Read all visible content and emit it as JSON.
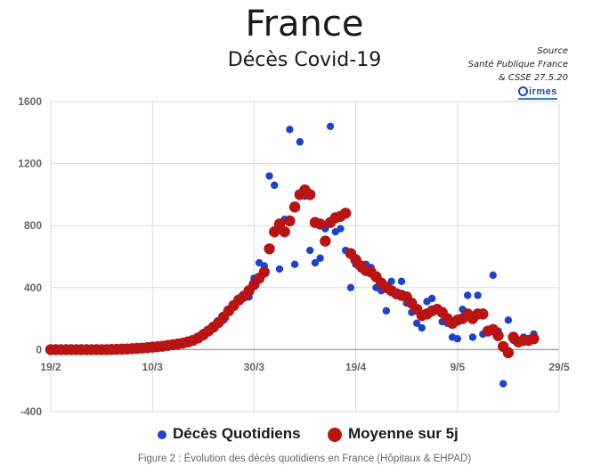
{
  "header": {
    "title": "France",
    "subtitle": "Décès Covid-19"
  },
  "source": {
    "line1": "Source",
    "line2": "Santé Publique France",
    "line3": "& CSSE  27.5.20",
    "logo_text": "irmes"
  },
  "caption": "Figure 2 : Évolution des décès quotidiens en France (Hôpitaux & EHPAD)",
  "colors": {
    "daily": "#1d44c8",
    "avg": "#b81414",
    "grid": "#d9d9d9"
  },
  "chart_data": {
    "type": "scatter",
    "title": "Décès Covid-19",
    "xlabel": "",
    "ylabel": "",
    "x_start": "19/2",
    "xlim": [
      0,
      100
    ],
    "ylim": [
      -400,
      1600
    ],
    "x_ticks": [
      {
        "day": 0,
        "label": "19/2"
      },
      {
        "day": 20,
        "label": "10/3"
      },
      {
        "day": 40,
        "label": "30/3"
      },
      {
        "day": 60,
        "label": "19/4"
      },
      {
        "day": 80,
        "label": "9/5"
      },
      {
        "day": 100,
        "label": "29/5"
      }
    ],
    "y_ticks": [
      -400,
      0,
      400,
      800,
      1200,
      1600
    ],
    "grid": true,
    "legend": "bottom",
    "series": [
      {
        "name": "Décès Quotidiens",
        "marker": "small-dot",
        "points": [
          [
            0,
            0
          ],
          [
            1,
            0
          ],
          [
            2,
            0
          ],
          [
            3,
            0
          ],
          [
            4,
            0
          ],
          [
            5,
            0
          ],
          [
            6,
            0
          ],
          [
            7,
            0
          ],
          [
            8,
            0
          ],
          [
            9,
            0
          ],
          [
            10,
            0
          ],
          [
            11,
            0
          ],
          [
            12,
            1
          ],
          [
            13,
            1
          ],
          [
            14,
            1
          ],
          [
            15,
            3
          ],
          [
            16,
            5
          ],
          [
            17,
            5
          ],
          [
            18,
            8
          ],
          [
            19,
            10
          ],
          [
            20,
            15
          ],
          [
            21,
            20
          ],
          [
            22,
            18
          ],
          [
            23,
            25
          ],
          [
            24,
            30
          ],
          [
            25,
            35
          ],
          [
            26,
            40
          ],
          [
            27,
            45
          ],
          [
            28,
            50
          ],
          [
            29,
            70
          ],
          [
            30,
            110
          ],
          [
            31,
            120
          ],
          [
            32,
            150
          ],
          [
            33,
            170
          ],
          [
            34,
            190
          ],
          [
            35,
            240
          ],
          [
            36,
            290
          ],
          [
            37,
            320
          ],
          [
            38,
            350
          ],
          [
            39,
            340
          ],
          [
            40,
            460
          ],
          [
            41,
            560
          ],
          [
            42,
            540
          ],
          [
            43,
            1120
          ],
          [
            44,
            1060
          ],
          [
            45,
            520
          ],
          [
            46,
            840
          ],
          [
            47,
            1420
          ],
          [
            48,
            550
          ],
          [
            49,
            1340
          ],
          [
            50,
            990
          ],
          [
            51,
            640
          ],
          [
            52,
            560
          ],
          [
            53,
            590
          ],
          [
            54,
            780
          ],
          [
            55,
            1440
          ],
          [
            56,
            760
          ],
          [
            57,
            780
          ],
          [
            58,
            640
          ],
          [
            59,
            400
          ],
          [
            60,
            550
          ],
          [
            61,
            520
          ],
          [
            62,
            550
          ],
          [
            63,
            530
          ],
          [
            64,
            400
          ],
          [
            65,
            380
          ],
          [
            66,
            250
          ],
          [
            67,
            440
          ],
          [
            68,
            370
          ],
          [
            69,
            440
          ],
          [
            70,
            300
          ],
          [
            71,
            240
          ],
          [
            72,
            170
          ],
          [
            73,
            140
          ],
          [
            74,
            310
          ],
          [
            75,
            330
          ],
          [
            76,
            250
          ],
          [
            77,
            180
          ],
          [
            78,
            170
          ],
          [
            79,
            80
          ],
          [
            80,
            70
          ],
          [
            81,
            260
          ],
          [
            82,
            350
          ],
          [
            83,
            80
          ],
          [
            84,
            350
          ],
          [
            85,
            100
          ],
          [
            86,
            130
          ],
          [
            87,
            480
          ],
          [
            88,
            120
          ],
          [
            89,
            -220
          ],
          [
            90,
            190
          ],
          [
            91,
            60
          ],
          [
            92,
            40
          ],
          [
            93,
            80
          ],
          [
            94,
            60
          ],
          [
            95,
            100
          ]
        ]
      },
      {
        "name": "Moyenne sur 5j",
        "marker": "large-dot",
        "points": [
          [
            0,
            0
          ],
          [
            1,
            0
          ],
          [
            2,
            0
          ],
          [
            3,
            0
          ],
          [
            4,
            0
          ],
          [
            5,
            0
          ],
          [
            6,
            0
          ],
          [
            7,
            0
          ],
          [
            8,
            0
          ],
          [
            9,
            0
          ],
          [
            10,
            0
          ],
          [
            11,
            0
          ],
          [
            12,
            1
          ],
          [
            13,
            2
          ],
          [
            14,
            3
          ],
          [
            15,
            4
          ],
          [
            16,
            6
          ],
          [
            17,
            8
          ],
          [
            18,
            10
          ],
          [
            19,
            13
          ],
          [
            20,
            16
          ],
          [
            21,
            19
          ],
          [
            22,
            22
          ],
          [
            23,
            27
          ],
          [
            24,
            32
          ],
          [
            25,
            36
          ],
          [
            26,
            42
          ],
          [
            27,
            50
          ],
          [
            28,
            60
          ],
          [
            29,
            75
          ],
          [
            30,
            95
          ],
          [
            31,
            120
          ],
          [
            32,
            145
          ],
          [
            33,
            175
          ],
          [
            34,
            210
          ],
          [
            35,
            250
          ],
          [
            36,
            285
          ],
          [
            37,
            320
          ],
          [
            38,
            345
          ],
          [
            39,
            380
          ],
          [
            40,
            420
          ],
          [
            41,
            460
          ],
          [
            42,
            500
          ],
          [
            43,
            650
          ],
          [
            44,
            760
          ],
          [
            45,
            810
          ],
          [
            46,
            760
          ],
          [
            47,
            830
          ],
          [
            48,
            920
          ],
          [
            49,
            1000
          ],
          [
            50,
            1030
          ],
          [
            51,
            1000
          ],
          [
            52,
            820
          ],
          [
            53,
            810
          ],
          [
            54,
            700
          ],
          [
            55,
            820
          ],
          [
            56,
            850
          ],
          [
            57,
            860
          ],
          [
            58,
            880
          ],
          [
            59,
            620
          ],
          [
            60,
            580
          ],
          [
            61,
            540
          ],
          [
            62,
            510
          ],
          [
            63,
            500
          ],
          [
            64,
            470
          ],
          [
            65,
            430
          ],
          [
            66,
            400
          ],
          [
            67,
            380
          ],
          [
            68,
            360
          ],
          [
            69,
            350
          ],
          [
            70,
            340
          ],
          [
            71,
            300
          ],
          [
            72,
            260
          ],
          [
            73,
            220
          ],
          [
            74,
            230
          ],
          [
            75,
            250
          ],
          [
            76,
            260
          ],
          [
            77,
            240
          ],
          [
            78,
            200
          ],
          [
            79,
            170
          ],
          [
            80,
            190
          ],
          [
            81,
            200
          ],
          [
            82,
            230
          ],
          [
            83,
            200
          ],
          [
            84,
            230
          ],
          [
            85,
            230
          ],
          [
            86,
            120
          ],
          [
            87,
            130
          ],
          [
            88,
            90
          ],
          [
            89,
            20
          ],
          [
            90,
            -20
          ],
          [
            91,
            80
          ],
          [
            92,
            50
          ],
          [
            93,
            60
          ],
          [
            94,
            60
          ],
          [
            95,
            70
          ]
        ]
      }
    ]
  }
}
